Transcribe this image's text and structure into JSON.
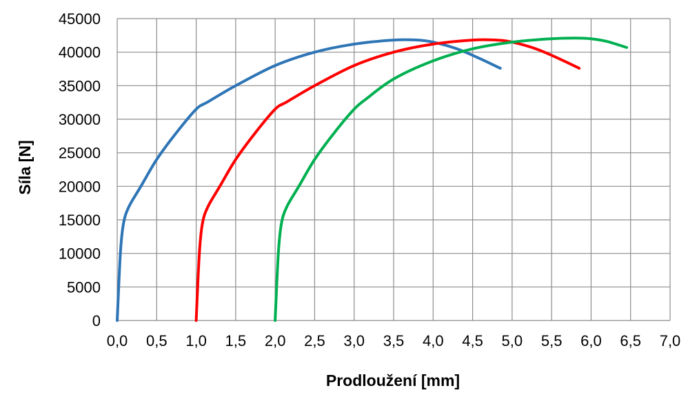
{
  "chart_data": {
    "type": "line",
    "title": "",
    "xlabel": "Prodloužení [mm]",
    "ylabel": "Síla [N]",
    "xlim": [
      0.0,
      7.0
    ],
    "ylim": [
      0,
      45000
    ],
    "x_ticks": [
      "0,0",
      "0,5",
      "1,0",
      "1,5",
      "2,0",
      "2,5",
      "3,0",
      "3,5",
      "4,0",
      "4,5",
      "5,0",
      "5,5",
      "6,0",
      "6,5",
      "7,0"
    ],
    "y_ticks": [
      "0",
      "5000",
      "10000",
      "15000",
      "20000",
      "25000",
      "30000",
      "35000",
      "40000",
      "45000"
    ],
    "grid": true,
    "legend": "none",
    "series": [
      {
        "color": "#2e75b6",
        "x": [
          0.0,
          0.04,
          0.08,
          0.15,
          0.3,
          0.5,
          0.75,
          1.0,
          1.15,
          1.5,
          2.0,
          2.5,
          3.0,
          3.5,
          3.8,
          4.0,
          4.3,
          4.6,
          4.85
        ],
        "y": [
          0,
          10000,
          14500,
          17000,
          20000,
          24000,
          28000,
          31500,
          32600,
          35000,
          38000,
          40000,
          41200,
          41800,
          41800,
          41500,
          40500,
          39000,
          37600
        ]
      },
      {
        "color": "#ff0000",
        "x": [
          1.0,
          1.04,
          1.08,
          1.15,
          1.3,
          1.5,
          1.75,
          2.0,
          2.15,
          2.5,
          3.0,
          3.5,
          4.0,
          4.5,
          4.8,
          5.0,
          5.3,
          5.6,
          5.85
        ],
        "y": [
          0,
          10000,
          14500,
          17000,
          20000,
          24000,
          28000,
          31500,
          32600,
          35000,
          38000,
          40000,
          41200,
          41800,
          41800,
          41500,
          40500,
          39000,
          37600
        ]
      },
      {
        "color": "#00b050",
        "x": [
          2.0,
          2.04,
          2.08,
          2.15,
          2.3,
          2.5,
          2.75,
          3.0,
          3.15,
          3.5,
          4.0,
          4.5,
          5.0,
          5.5,
          5.8,
          6.0,
          6.2,
          6.45
        ],
        "y": [
          0,
          10000,
          14500,
          17000,
          20000,
          24000,
          28000,
          31500,
          33000,
          36000,
          38700,
          40500,
          41500,
          42000,
          42100,
          42000,
          41600,
          40700
        ]
      }
    ]
  }
}
